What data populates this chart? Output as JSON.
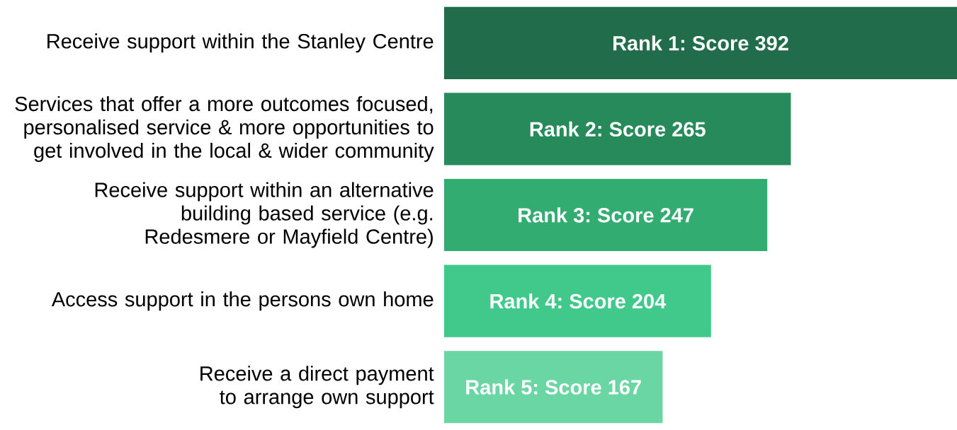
{
  "chart_data": {
    "type": "bar",
    "orientation": "horizontal",
    "categories": [
      "Receive support within the Stanley Centre",
      "Services that offer a more outcomes focused, personalised service & more opportunities to get involved in the local & wider community",
      "Receive support within an alternative building based service (e.g. Redesmere or Mayfield Centre)",
      "Access support in the persons own home",
      "Receive a direct payment to arrange own support"
    ],
    "values": [
      392,
      265,
      247,
      204,
      167
    ],
    "colors": [
      "#216d4b",
      "#268a5a",
      "#33ac71",
      "#40c98a",
      "#6ad6a3"
    ],
    "value_labels": [
      "Rank 1: Score 392",
      "Rank 2: Score 265",
      "Rank 3: Score 247",
      "Rank 4: Score 204",
      "Rank 5: Score 167"
    ],
    "data_labels": false
  }
}
